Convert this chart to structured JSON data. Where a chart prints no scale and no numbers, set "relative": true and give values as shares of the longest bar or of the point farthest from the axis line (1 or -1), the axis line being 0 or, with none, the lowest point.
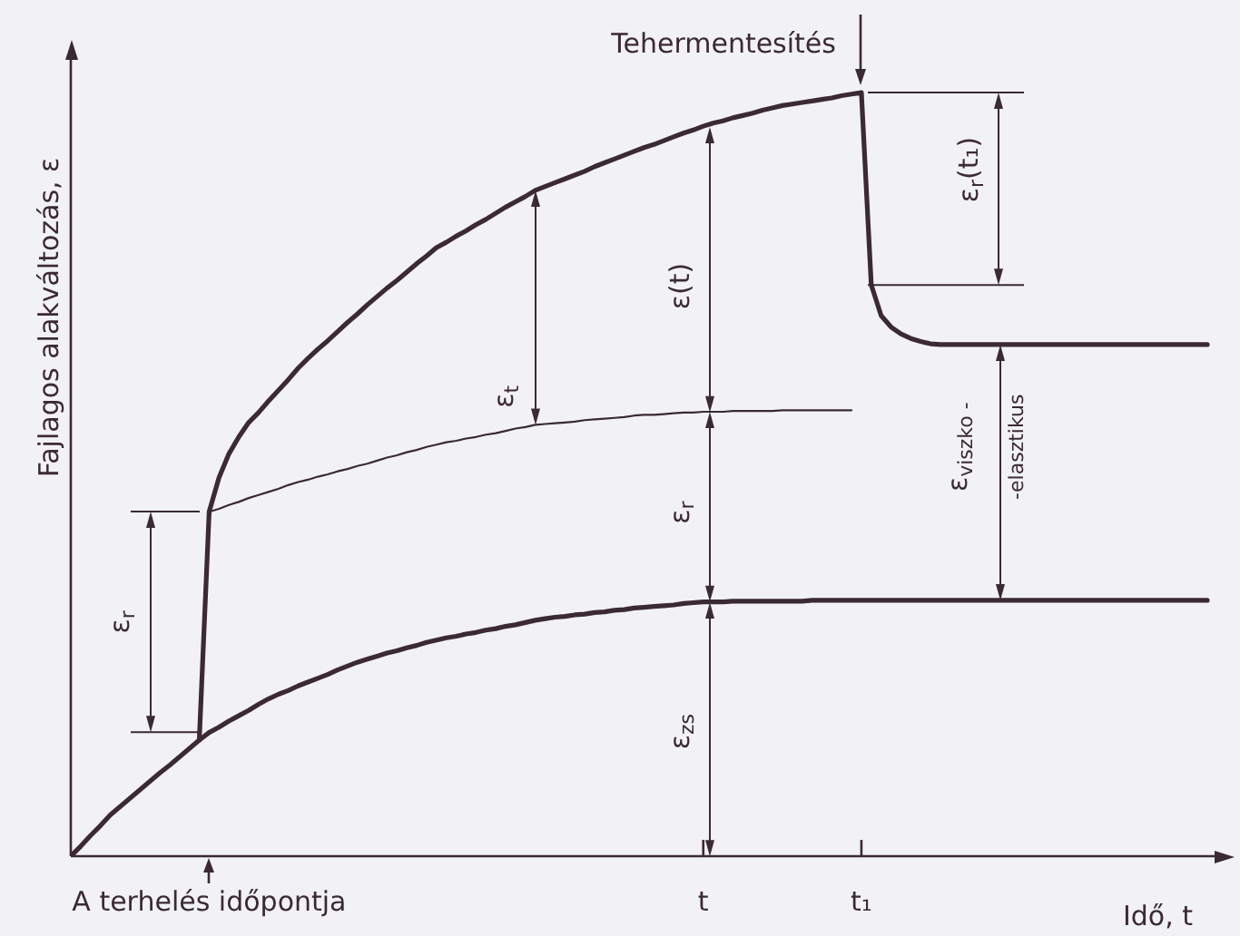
{
  "chart_data": {
    "type": "line",
    "relative": true,
    "xlabel": "Idő, t",
    "ylabel": "Fajlagos alakváltozás, ε",
    "categories": [
      null,
      null,
      null,
      null,
      null,
      null,
      null,
      null,
      null,
      null,
      null,
      null,
      null,
      null,
      "A terhelés időpontja",
      null,
      null,
      null,
      null,
      null,
      null,
      null,
      null,
      null,
      null,
      null,
      null,
      null,
      null,
      null,
      null,
      null,
      null,
      null,
      null,
      null,
      null,
      null,
      null,
      null,
      null,
      null,
      null,
      null,
      null,
      null,
      null,
      null,
      null,
      null,
      null,
      null,
      null,
      null,
      null,
      null,
      null,
      null,
      null,
      null,
      null,
      null,
      null,
      null,
      "t",
      null,
      null,
      null,
      null,
      null,
      null,
      null,
      null,
      null,
      null,
      null,
      null,
      null,
      null,
      null,
      "t₁",
      null,
      null,
      null,
      null,
      null,
      null,
      null,
      null,
      null,
      null,
      null,
      null,
      null,
      null,
      null,
      null,
      null,
      null,
      null,
      null,
      null,
      null,
      null,
      null,
      null,
      null,
      null,
      null,
      null,
      null,
      null,
      null,
      null,
      null,
      null
    ],
    "series": [
      {
        "color": "#3b2a31",
        "values": [
          null,
          null,
          null,
          null,
          null,
          null,
          null,
          null,
          null,
          null,
          null,
          null,
          null,
          0.152,
          0.451,
          0.496,
          0.527,
          0.549,
          0.568,
          0.581,
          0.596,
          0.61,
          0.624,
          0.639,
          0.652,
          0.664,
          0.675,
          0.687,
          0.699,
          0.71,
          0.722,
          0.733,
          0.744,
          0.754,
          0.765,
          0.776,
          0.786,
          0.797,
          0.804,
          0.812,
          0.819,
          0.827,
          0.834,
          0.842,
          0.85,
          0.857,
          0.864,
          0.872,
          0.877,
          0.882,
          0.887,
          0.892,
          0.897,
          0.903,
          0.908,
          0.913,
          0.918,
          0.923,
          0.928,
          0.932,
          0.937,
          0.942,
          0.947,
          0.951,
          0.956,
          0.96,
          0.963,
          0.967,
          0.97,
          0.973,
          0.977,
          0.98,
          0.983,
          0.985,
          0.987,
          0.989,
          0.991,
          0.993,
          0.996,
          0.998,
          1,
          0.748,
          0.708,
          0.693,
          0.684,
          0.678,
          0.674,
          0.671,
          0.67,
          0.67,
          0.67,
          0.67,
          0.67,
          0.67,
          0.67,
          0.67,
          0.67,
          0.67,
          0.67,
          0.67,
          0.67,
          0.67,
          0.67,
          0.67,
          0.67,
          0.67,
          0.67,
          0.67,
          0.67,
          0.67,
          0.67,
          0.67,
          0.67,
          0.67,
          0.67,
          0.67
        ]
      },
      {
        "color": "#3b2a31",
        "values": [
          null,
          null,
          null,
          null,
          null,
          null,
          null,
          null,
          null,
          null,
          null,
          null,
          null,
          null,
          0.451,
          0.455,
          0.46,
          0.464,
          0.469,
          0.473,
          0.477,
          0.481,
          0.486,
          0.49,
          0.493,
          0.497,
          0.5,
          0.504,
          0.507,
          0.511,
          0.514,
          0.518,
          0.522,
          0.525,
          0.529,
          0.532,
          0.536,
          0.539,
          0.542,
          0.544,
          0.547,
          0.549,
          0.552,
          0.554,
          0.557,
          0.56,
          0.562,
          0.565,
          0.566,
          0.567,
          0.568,
          0.569,
          0.571,
          0.572,
          0.573,
          0.574,
          0.575,
          0.577,
          0.578,
          0.578,
          0.579,
          0.58,
          0.581,
          0.581,
          0.582,
          0.582,
          0.582,
          0.583,
          0.583,
          0.583,
          0.583,
          0.583,
          0.584,
          0.584,
          0.584,
          0.584,
          0.584,
          0.584,
          0.584,
          0.584,
          null,
          null,
          null,
          null,
          null,
          null,
          null,
          null,
          null,
          null,
          null,
          null,
          null,
          null,
          null,
          null,
          null,
          null,
          null,
          null,
          null,
          null,
          null,
          null,
          null,
          null,
          null,
          null,
          null,
          null,
          null,
          null,
          null,
          null,
          null,
          null
        ]
      },
      {
        "color": "#3b2a31",
        "values": [
          0,
          0.013,
          0.027,
          0.04,
          0.054,
          0.065,
          0.076,
          0.087,
          0.098,
          0.109,
          0.119,
          0.13,
          0.141,
          0.152,
          0.162,
          0.169,
          0.177,
          0.184,
          0.191,
          0.199,
          0.206,
          0.212,
          0.217,
          0.223,
          0.228,
          0.233,
          0.238,
          0.244,
          0.249,
          0.254,
          0.258,
          0.262,
          0.266,
          0.269,
          0.273,
          0.276,
          0.28,
          0.283,
          0.286,
          0.288,
          0.291,
          0.293,
          0.296,
          0.298,
          0.301,
          0.303,
          0.306,
          0.309,
          0.311,
          0.313,
          0.314,
          0.316,
          0.317,
          0.319,
          0.32,
          0.322,
          0.323,
          0.325,
          0.326,
          0.327,
          0.328,
          0.329,
          0.331,
          0.332,
          0.333,
          0.333,
          0.333,
          0.334,
          0.334,
          0.334,
          0.334,
          0.334,
          0.334,
          0.334,
          0.334,
          0.335,
          0.335,
          0.335,
          0.335,
          0.335,
          0.335,
          0.335,
          0.335,
          0.335,
          0.335,
          0.335,
          0.335,
          0.335,
          0.335,
          0.335,
          0.335,
          0.335,
          0.335,
          0.335,
          0.335,
          0.335,
          0.335,
          0.335,
          0.335,
          0.335,
          0.335,
          0.335,
          0.335,
          0.335,
          0.335,
          0.335,
          0.335,
          0.335,
          0.335,
          0.335,
          0.335,
          0.335,
          0.335,
          0.335,
          0.335,
          0.335
        ]
      }
    ],
    "annotations": [
      {
        "text": "Tehermentesítés",
        "x": "t₁",
        "y": 1
      },
      "ε$_{r}$",
      "ε$_{t}$",
      "ε(t)",
      "ε$_{r}$",
      "ε$_{zs}$",
      "ε$_{r}$(t₁)",
      "ε$_{viszko - -elasztikus}$"
    ],
    "grid": false,
    "legend": false,
    "marker": "none",
    "line_style": "solid"
  }
}
